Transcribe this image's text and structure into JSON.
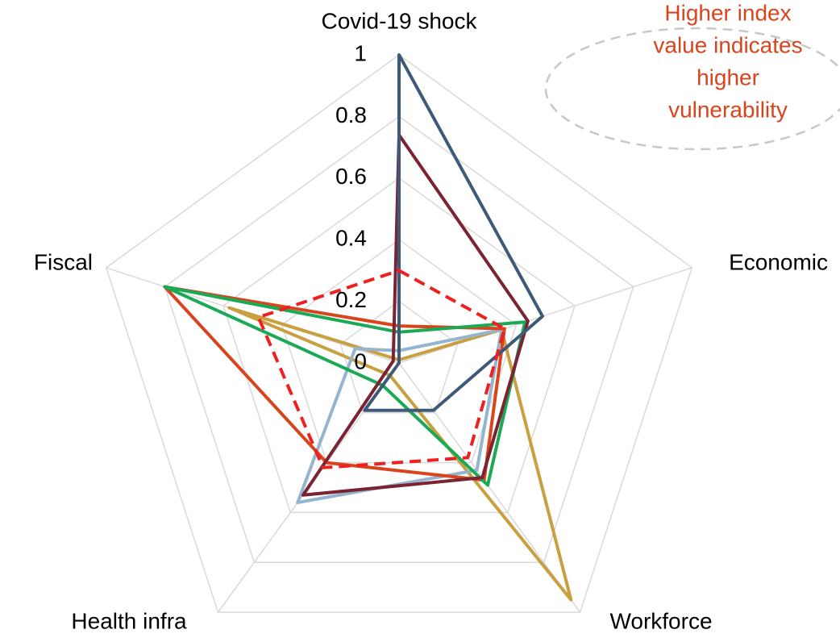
{
  "chart_data": {
    "type": "radar",
    "categories": [
      "Covid-19 shock",
      "Economic",
      "Workforce",
      "Health infra",
      "Fiscal"
    ],
    "ylim": [
      0,
      1
    ],
    "yticks": [
      0,
      0.2,
      0.4,
      0.6,
      0.8,
      1
    ],
    "grid": true,
    "annotation": [
      "Higher index",
      "value indicates",
      "higher",
      "vulnerability"
    ],
    "annotation_color": "#d9441c",
    "series": [
      {
        "color": "#c9a040",
        "values": [
          0.01,
          0.35,
          0.95,
          0.05,
          0.58
        ]
      },
      {
        "color": "#94b4d0",
        "values": [
          0.04,
          0.35,
          0.43,
          0.56,
          0.15
        ]
      },
      {
        "color": "#d9441c",
        "values": [
          0.12,
          0.36,
          0.47,
          0.4,
          0.8
        ]
      },
      {
        "color": "#1aaa55",
        "values": [
          0.1,
          0.43,
          0.49,
          0.09,
          0.8
        ]
      },
      {
        "color": "#7b2333",
        "values": [
          0.74,
          0.44,
          0.46,
          0.53,
          0.02
        ]
      },
      {
        "color": "#3e5a78",
        "values": [
          1,
          0.49,
          0.19,
          0.19,
          0.0
        ]
      },
      {
        "color": "#ee2020",
        "dashed": true,
        "values": [
          0.3,
          0.36,
          0.38,
          0.42,
          0.48
        ]
      }
    ]
  }
}
